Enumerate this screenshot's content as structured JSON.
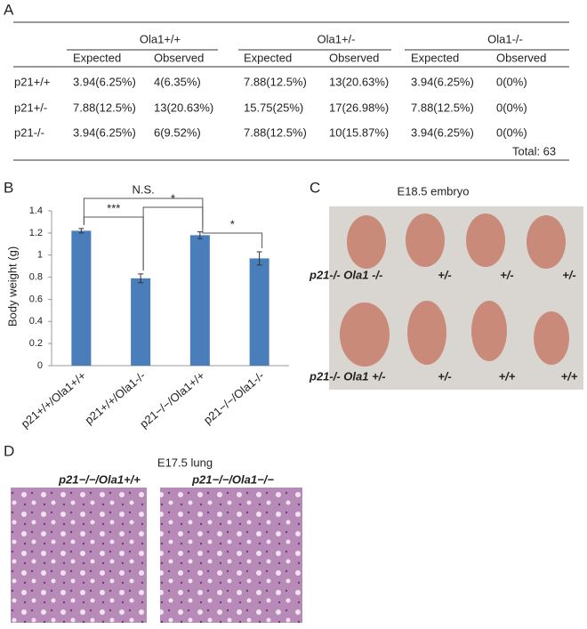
{
  "panel_a": {
    "label": "A",
    "groups": [
      "Ola1+/+",
      "Ola1+/-",
      "Ola1-/-"
    ],
    "subheaders": [
      "Expected",
      "Observed",
      "Expected",
      "Observed",
      "Expected",
      "Observed"
    ],
    "rows": [
      [
        "p21+/+",
        "3.94(6.25%)",
        "4(6.35%)",
        "7.88(12.5%)",
        "13(20.63%)",
        "3.94(6.25%)",
        "0(0%)"
      ],
      [
        "p21+/-",
        "7.88(12.5%)",
        "13(20.63%)",
        "15.75(25%)",
        "17(26.98%)",
        "7.88(12.5%)",
        "0(0%)"
      ],
      [
        "p21-/-",
        "3.94(6.25%)",
        "6(9.52%)",
        "7.88(12.5%)",
        "10(15.87%)",
        "3.94(6.25%)",
        "0(0%)"
      ]
    ],
    "total": "Total: 63"
  },
  "chart_data": {
    "type": "bar",
    "panel_label": "B",
    "ylabel": "Body weight (g)",
    "categories": [
      "p21+/+/Ola1+/+",
      "p21+/+/Ola1-/-",
      "p21−/−/Ola1+/+",
      "p21−/−/Ola1-/-"
    ],
    "values": [
      1.22,
      0.79,
      1.18,
      0.97
    ],
    "errors": [
      0.02,
      0.04,
      0.03,
      0.06
    ],
    "color": "#4a7ebb",
    "ylim": [
      0,
      1.4
    ],
    "yticks": [
      0,
      0.2,
      0.4,
      0.6,
      0.8,
      1,
      1.2,
      1.4
    ],
    "annotations": [
      "N.S.",
      "***",
      "*",
      "*"
    ]
  },
  "panel_c": {
    "label": "C",
    "title": "E18.5 embryo",
    "row1": [
      "p21-/-  Ola1 -/-",
      "+/-",
      "+/-",
      "+/-"
    ],
    "row2": [
      "p21-/- Ola1 +/-",
      "+/-",
      "+/+",
      "+/+"
    ]
  },
  "panel_d": {
    "label": "D",
    "title": "E17.5 lung",
    "images": [
      "p21−/−/Ola1+/+",
      "p21−/−/Ola1−/−"
    ]
  }
}
